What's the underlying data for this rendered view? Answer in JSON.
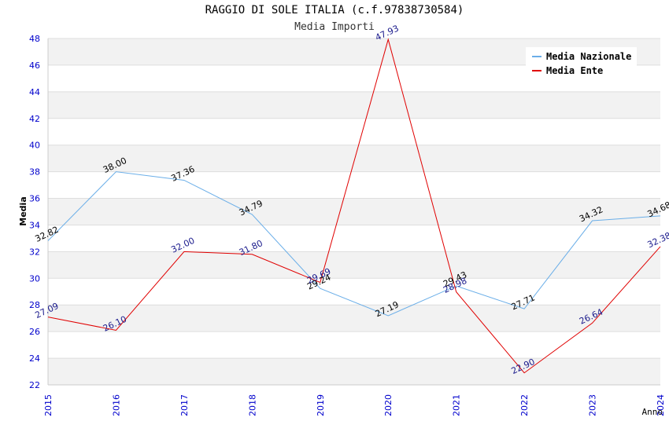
{
  "title": "RAGGIO DI SOLE ITALIA (c.f.97838730584)",
  "subtitle": "Media Importi",
  "chart_data": {
    "type": "line",
    "categories": [
      "2015",
      "2016",
      "2017",
      "2018",
      "2019",
      "2020",
      "2021",
      "2022",
      "2023",
      "2024"
    ],
    "xlabel": "Anno",
    "ylabel": "Media",
    "ylim": [
      22,
      48
    ],
    "yticks": [
      22,
      24,
      26,
      28,
      30,
      32,
      34,
      36,
      38,
      40,
      42,
      44,
      46,
      48
    ],
    "grid": true,
    "legend_position": "top-right",
    "series": [
      {
        "name": "Media Nazionale",
        "color": "#6aaee8",
        "label_color": "#000000",
        "values": [
          32.82,
          38.0,
          37.36,
          34.79,
          29.24,
          27.19,
          29.43,
          27.71,
          34.32,
          34.68
        ],
        "labels": [
          "32.82",
          "38.00",
          "37.36",
          "34.79",
          "29.24",
          "27.19",
          "29.43",
          "27.71",
          "34.32",
          "34.68"
        ]
      },
      {
        "name": "Media Ente",
        "color": "#e00000",
        "label_color": "#1a1a8c",
        "values": [
          27.09,
          26.1,
          32.0,
          31.8,
          29.69,
          47.93,
          28.98,
          22.9,
          26.64,
          32.38
        ],
        "labels": [
          "27.09",
          "26.10",
          "32.00",
          "31.80",
          "29.69",
          "47.93",
          "28.98",
          "22.90",
          "26.64",
          "32.38"
        ]
      }
    ]
  },
  "colors": {
    "band": "#f2f2f2",
    "gridline": "#dddddd",
    "axis_tick_label": "#0000cc"
  }
}
